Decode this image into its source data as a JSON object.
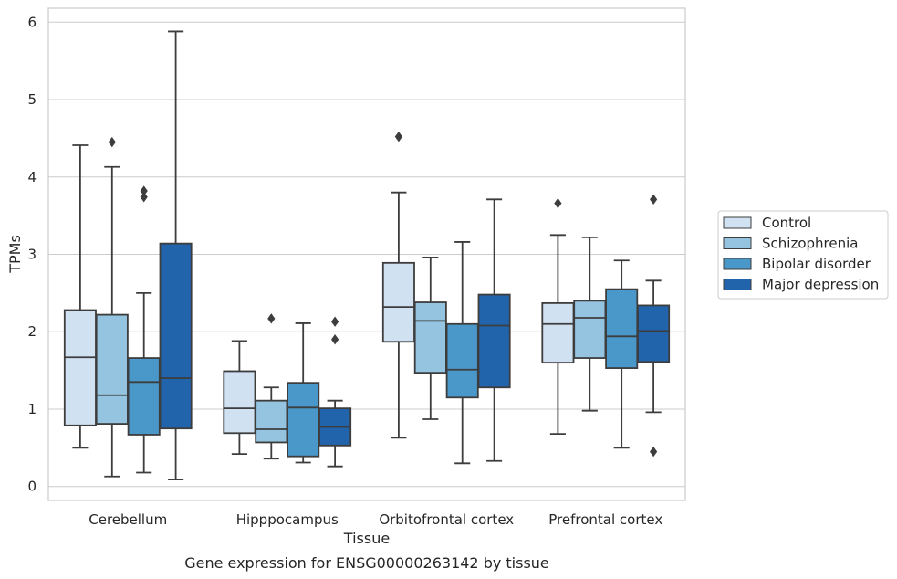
{
  "chart_data": {
    "type": "boxplot",
    "xlabel": "Tissue",
    "ylabel": "TPMs",
    "caption": "Gene expression for ENSG00000263142 by tissue",
    "ylim": [
      -0.18,
      6.18
    ],
    "yticks": [
      0,
      1,
      2,
      3,
      4,
      5,
      6
    ],
    "grid": true,
    "legend_position": "right",
    "categories": [
      "Cerebellum",
      "Hipppocampus",
      "Orbitofrontal cortex",
      "Prefrontal cortex"
    ],
    "series": [
      {
        "name": "Control",
        "color": "#d0e1f2",
        "boxes": [
          {
            "whislo": 0.5,
            "q1": 0.79,
            "med": 1.67,
            "q3": 2.28,
            "whishi": 4.41,
            "fliers": []
          },
          {
            "whislo": 0.42,
            "q1": 0.69,
            "med": 1.01,
            "q3": 1.49,
            "whishi": 1.88,
            "fliers": []
          },
          {
            "whislo": 0.63,
            "q1": 1.87,
            "med": 2.32,
            "q3": 2.89,
            "whishi": 3.8,
            "fliers": [
              4.52
            ]
          },
          {
            "whislo": 0.68,
            "q1": 1.6,
            "med": 2.1,
            "q3": 2.37,
            "whishi": 3.25,
            "fliers": [
              3.66
            ]
          }
        ]
      },
      {
        "name": "Schizophrenia",
        "color": "#94c4df",
        "boxes": [
          {
            "whislo": 0.13,
            "q1": 0.81,
            "med": 1.18,
            "q3": 2.22,
            "whishi": 4.13,
            "fliers": [
              4.45
            ]
          },
          {
            "whislo": 0.36,
            "q1": 0.57,
            "med": 0.74,
            "q3": 1.11,
            "whishi": 1.28,
            "fliers": [
              2.17
            ]
          },
          {
            "whislo": 0.87,
            "q1": 1.47,
            "med": 2.14,
            "q3": 2.38,
            "whishi": 2.96,
            "fliers": []
          },
          {
            "whislo": 0.98,
            "q1": 1.66,
            "med": 2.18,
            "q3": 2.4,
            "whishi": 3.22,
            "fliers": []
          }
        ]
      },
      {
        "name": "Bipolar disorder",
        "color": "#4a98c9",
        "boxes": [
          {
            "whislo": 0.18,
            "q1": 0.67,
            "med": 1.35,
            "q3": 1.66,
            "whishi": 2.5,
            "fliers": [
              3.74,
              3.82
            ]
          },
          {
            "whislo": 0.31,
            "q1": 0.39,
            "med": 1.02,
            "q3": 1.34,
            "whishi": 2.11,
            "fliers": []
          },
          {
            "whislo": 0.3,
            "q1": 1.15,
            "med": 1.51,
            "q3": 2.1,
            "whishi": 3.16,
            "fliers": []
          },
          {
            "whislo": 0.5,
            "q1": 1.53,
            "med": 1.94,
            "q3": 2.55,
            "whishi": 2.92,
            "fliers": []
          }
        ]
      },
      {
        "name": "Major depression",
        "color": "#2164ab",
        "boxes": [
          {
            "whislo": 0.09,
            "q1": 0.75,
            "med": 1.4,
            "q3": 3.14,
            "whishi": 5.88,
            "fliers": []
          },
          {
            "whislo": 0.26,
            "q1": 0.53,
            "med": 0.77,
            "q3": 1.01,
            "whishi": 1.11,
            "fliers": [
              1.9,
              2.13
            ]
          },
          {
            "whislo": 0.33,
            "q1": 1.28,
            "med": 2.08,
            "q3": 2.48,
            "whishi": 3.71,
            "fliers": []
          },
          {
            "whislo": 0.96,
            "q1": 1.61,
            "med": 2.01,
            "q3": 2.34,
            "whishi": 2.66,
            "fliers": [
              0.45,
              3.71
            ]
          }
        ]
      }
    ]
  }
}
